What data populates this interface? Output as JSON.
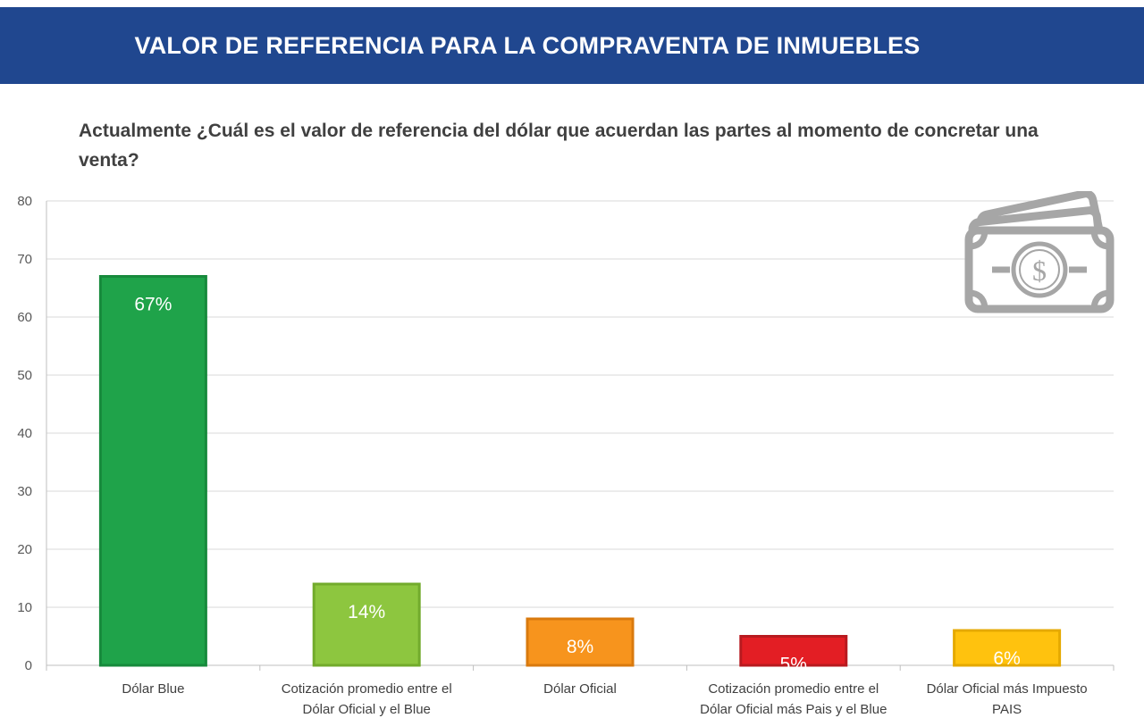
{
  "header": {
    "title": "VALOR DE REFERENCIA PARA LA COMPRAVENTA DE INMUEBLES"
  },
  "question": "Actualmente ¿Cuál es el valor de referencia del dólar que acuerdan las partes al momento de concretar una venta?",
  "icon": {
    "name": "money-bills-icon",
    "symbol": "$",
    "color": "#a6a6a6"
  },
  "chart_data": {
    "type": "bar",
    "title": "",
    "xlabel": "",
    "ylabel": "",
    "ylim": [
      0,
      80
    ],
    "yticks": [
      0,
      10,
      20,
      30,
      40,
      50,
      60,
      70,
      80
    ],
    "grid": true,
    "legend": "none",
    "categories": [
      [
        "Dólar Blue"
      ],
      [
        "Cotización promedio entre el",
        "Dólar Oficial y el Blue"
      ],
      [
        "Dólar Oficial"
      ],
      [
        "Cotización promedio entre el",
        "Dólar Oficial más Pais y el Blue"
      ],
      [
        "Dólar Oficial más Impuesto",
        "PAIS"
      ]
    ],
    "values": [
      67,
      14,
      8,
      5,
      6
    ],
    "data_labels": [
      "67%",
      "14%",
      "8%",
      "5%",
      "6%"
    ],
    "colors": [
      "#1fa34a",
      "#8dc63f",
      "#f7941d",
      "#e31e24",
      "#ffc20e"
    ],
    "border_colors": [
      "#178a3c",
      "#72ab2c",
      "#d97a0e",
      "#b81a1f",
      "#e5a900"
    ]
  }
}
